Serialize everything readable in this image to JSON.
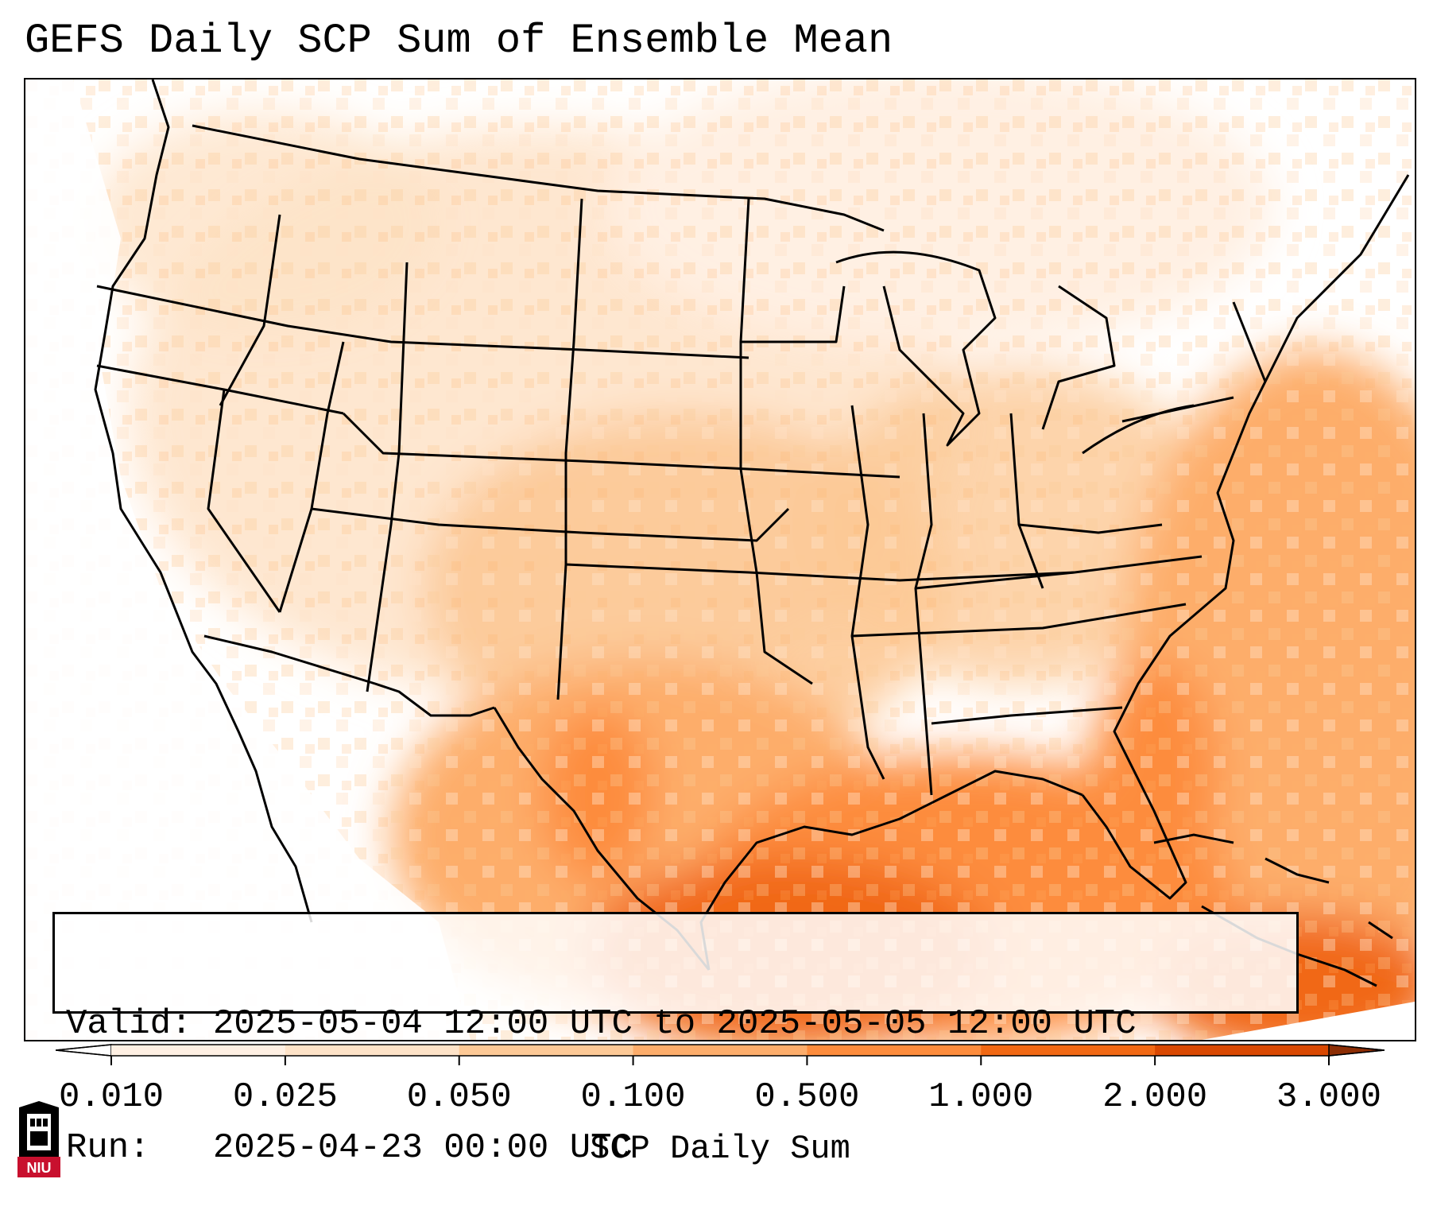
{
  "title": "GEFS Daily SCP Sum of Ensemble Mean",
  "info": {
    "valid": "Valid: 2025-05-04 12:00 UTC to 2025-05-05 12:00 UTC",
    "run": "Run:   2025-04-23 00:00 UTC"
  },
  "colorbar": {
    "label": "SCP Daily Sum",
    "ticks": [
      "0.010",
      "0.025",
      "0.050",
      "0.100",
      "0.500",
      "1.000",
      "2.000",
      "3.000"
    ],
    "colors": [
      "#fff0e3",
      "#fee3c8",
      "#fdc996",
      "#fdad6b",
      "#fd8c3c",
      "#f16813",
      "#d94801"
    ],
    "under_color": "#ffffff",
    "over_color": "#8c2d04",
    "extend": "both"
  },
  "logo": {
    "text": "NIU",
    "colors": [
      "#c8102e",
      "#000000"
    ]
  }
}
